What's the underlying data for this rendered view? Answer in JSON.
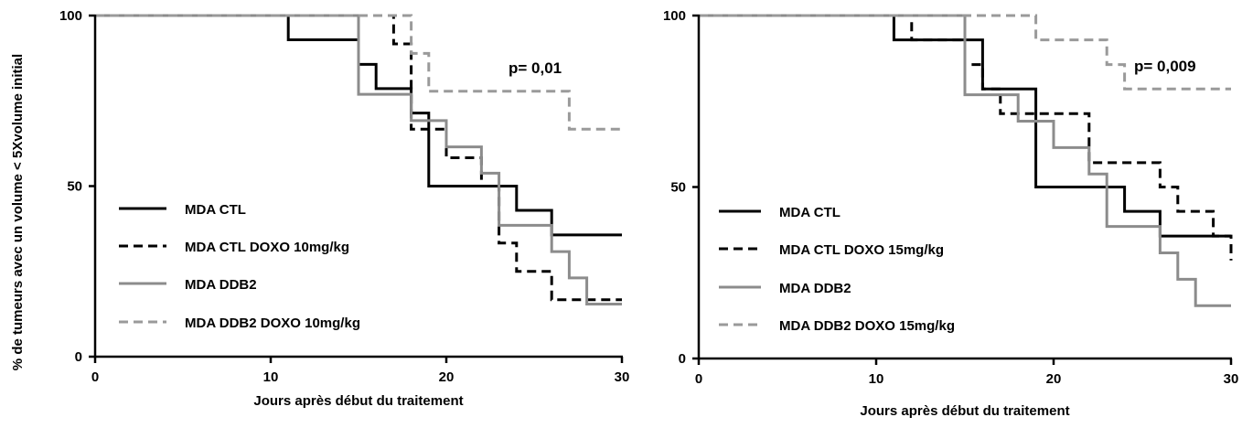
{
  "ylabel": "% de tumeurs avec un volume < 5Xvolume initial",
  "chart_data": [
    {
      "type": "line",
      "step": true,
      "xlabel": "Jours après début du traitement",
      "ylabel": "% de tumeurs avec un volume < 5Xvolume initial",
      "xlim": [
        0,
        30
      ],
      "ylim": [
        0,
        100
      ],
      "xticks": [
        0,
        10,
        20,
        30
      ],
      "yticks": [
        0,
        50,
        100
      ],
      "grid": false,
      "legend_position": "bottom-left",
      "annotation": "p= 0,01",
      "series": [
        {
          "name": "MDA CTL",
          "color": "#000000",
          "dash": "solid",
          "x": [
            0,
            11,
            15,
            16,
            18,
            19,
            24,
            26,
            30
          ],
          "y": [
            100,
            92.9,
            85.7,
            78.6,
            71.4,
            50,
            42.9,
            35.7,
            35.7
          ]
        },
        {
          "name": "MDA CTL DOXO 10mg/kg",
          "color": "#000000",
          "dash": "dashed",
          "x": [
            0,
            17,
            18,
            20,
            22,
            23,
            24,
            26,
            30
          ],
          "y": [
            100,
            91.7,
            66.7,
            58.3,
            50,
            33.3,
            25,
            16.7,
            16.7
          ]
        },
        {
          "name": "MDA DDB2",
          "color": "#8c8c8c",
          "dash": "solid",
          "x": [
            0,
            15,
            18,
            20,
            22,
            23,
            26,
            27,
            28,
            30
          ],
          "y": [
            100,
            76.9,
            69.2,
            61.5,
            53.8,
            38.5,
            30.8,
            23.1,
            15.4,
            15.4
          ]
        },
        {
          "name": "MDA DDB2 DOXO 10mg/kg",
          "color": "#9a9a9a",
          "dash": "dashed",
          "x": [
            0,
            18,
            19,
            27,
            30
          ],
          "y": [
            100,
            88.9,
            77.8,
            66.7,
            66.7
          ]
        }
      ]
    },
    {
      "type": "line",
      "step": true,
      "xlabel": "Jours après début du traitement",
      "ylabel": "",
      "xlim": [
        0,
        30
      ],
      "ylim": [
        0,
        100
      ],
      "xticks": [
        0,
        10,
        20,
        30
      ],
      "yticks": [
        0,
        50,
        100
      ],
      "grid": false,
      "legend_position": "bottom-left",
      "annotation": "p= 0,009",
      "series": [
        {
          "name": "MDA CTL",
          "color": "#000000",
          "dash": "solid",
          "x": [
            0,
            11,
            16,
            19,
            24,
            26,
            30
          ],
          "y": [
            100,
            92.9,
            78.6,
            50,
            42.9,
            35.7,
            35.7
          ]
        },
        {
          "name": "MDA CTL DOXO 15mg/kg",
          "color": "#000000",
          "dash": "dashed",
          "x": [
            0,
            12,
            15,
            16,
            17,
            22,
            26,
            27,
            29,
            30
          ],
          "y": [
            100,
            92.9,
            85.7,
            78.6,
            71.4,
            57.1,
            50,
            42.9,
            35.7,
            28.6
          ]
        },
        {
          "name": "MDA DDB2",
          "color": "#8c8c8c",
          "dash": "solid",
          "x": [
            0,
            15,
            18,
            20,
            22,
            23,
            26,
            27,
            28,
            30
          ],
          "y": [
            100,
            76.9,
            69.2,
            61.5,
            53.8,
            38.5,
            30.8,
            23.1,
            15.4,
            15.4
          ]
        },
        {
          "name": "MDA DDB2 DOXO 15mg/kg",
          "color": "#9a9a9a",
          "dash": "dashed",
          "x": [
            0,
            19,
            23,
            24,
            30
          ],
          "y": [
            100,
            92.9,
            85.7,
            78.6,
            78.6
          ]
        }
      ]
    }
  ]
}
